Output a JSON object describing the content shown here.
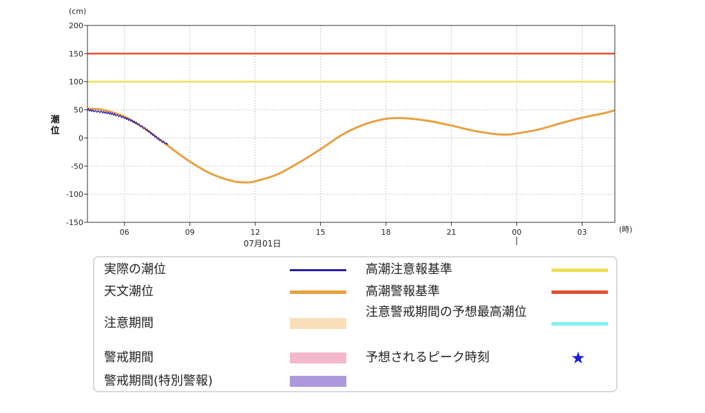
{
  "chart_data": {
    "type": "line",
    "unit_label": "(cm)",
    "ylabel": "潮位",
    "xunit_label": "(時)",
    "date_label": "07月01日",
    "ylim": [
      -150,
      200
    ],
    "yticks": [
      -150,
      -100,
      -50,
      0,
      50,
      100,
      150,
      200
    ],
    "x_range_hours": [
      4.3,
      28.5
    ],
    "xticks": [
      {
        "hour": 6,
        "label": "06"
      },
      {
        "hour": 9,
        "label": "09"
      },
      {
        "hour": 12,
        "label": "12"
      },
      {
        "hour": 15,
        "label": "15"
      },
      {
        "hour": 18,
        "label": "18"
      },
      {
        "hour": 21,
        "label": "21"
      },
      {
        "hour": 24,
        "label": "00"
      },
      {
        "hour": 27,
        "label": "03"
      }
    ],
    "grid": true,
    "series": [
      {
        "name": "天文潮位",
        "color": "#e8a040",
        "x": [
          4.3,
          5,
          6,
          7,
          8,
          9,
          10,
          11,
          11.6,
          12,
          13,
          14,
          15,
          16,
          17,
          18,
          18.9,
          20,
          21,
          22,
          23,
          23.6,
          24,
          25,
          26,
          27,
          28,
          28.5
        ],
        "y": [
          52,
          50,
          38,
          15,
          -14,
          -42,
          -64,
          -77,
          -79,
          -77,
          -65,
          -44,
          -20,
          6,
          24,
          34,
          35,
          30,
          22,
          13,
          7,
          6,
          8,
          15,
          26,
          36,
          44,
          49
        ]
      },
      {
        "name": "実際の潮位",
        "color": "#2a1aa8",
        "x": [
          4.3,
          4.6,
          5,
          5.3,
          5.6,
          6,
          6.3,
          6.6,
          7,
          7.3,
          7.6,
          8.0
        ],
        "y": [
          50,
          48,
          46,
          44,
          41,
          36,
          31,
          25,
          15,
          6,
          -3,
          -12
        ]
      }
    ],
    "thresholds": [
      {
        "name": "高潮警報基準",
        "value": 150,
        "color": "#e05030"
      },
      {
        "name": "高潮注意報基準",
        "value": 100,
        "color": "#f0e050"
      }
    ],
    "legend": {
      "placement": "bottom",
      "left_items": [
        {
          "label": "実際の潮位",
          "color": "#2a1aa8",
          "kind": "line"
        },
        {
          "label": "天文潮位",
          "color": "#e8a040",
          "kind": "line"
        },
        {
          "label": "注意期間",
          "color": "#f8dfb8",
          "kind": "box"
        },
        {
          "label": "警戒期間",
          "color": "#f4b8cc",
          "kind": "box"
        },
        {
          "label": "警戒期間(特別警報)",
          "color": "#ae98dc",
          "kind": "box"
        }
      ],
      "right_items": [
        {
          "label": "高潮注意報基準",
          "color": "#f0e050",
          "kind": "line"
        },
        {
          "label": "高潮警報基準",
          "color": "#e05030",
          "kind": "line"
        },
        {
          "label": "注意警戒期間の予想最高潮位",
          "color": "#80f0f0",
          "kind": "line"
        },
        {
          "label": "予想されるピーク時刻",
          "color": "#1a1adf",
          "kind": "star",
          "icon": "star-icon"
        }
      ]
    }
  }
}
